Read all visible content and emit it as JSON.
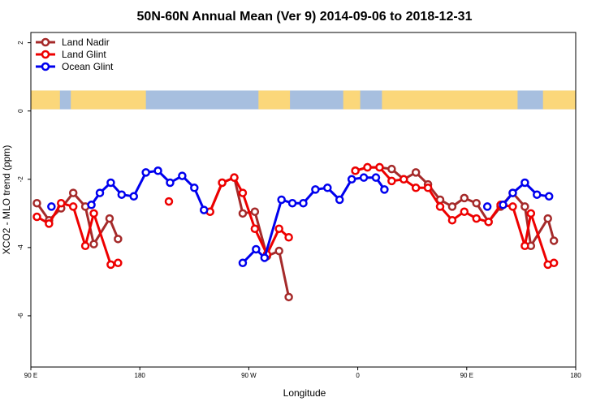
{
  "chart_data": {
    "type": "line",
    "title": "50N-60N Annual Mean (Ver 9)   2014-09-06 to 2018-12-31",
    "xlabel": "Longitude",
    "ylabel": "XCO2 - MLO trend (ppm)",
    "xlim": [
      0,
      450
    ],
    "ylim": [
      -7.5,
      2.3
    ],
    "x_ticks": [
      {
        "value": 0,
        "label": "90 E"
      },
      {
        "value": 90,
        "label": "180"
      },
      {
        "value": 180,
        "label": "90 W"
      },
      {
        "value": 270,
        "label": "0"
      },
      {
        "value": 360,
        "label": "90 E"
      },
      {
        "value": 450,
        "label": "180"
      }
    ],
    "y_ticks": [
      {
        "value": 2,
        "label": "2"
      },
      {
        "value": 0,
        "label": "0"
      },
      {
        "value": -2,
        "label": "-2"
      },
      {
        "value": -4,
        "label": "-4"
      },
      {
        "value": -6,
        "label": "-6"
      }
    ],
    "grid": false,
    "legend_position": "top-left",
    "map_band": {
      "y_top": 0.6,
      "y_bottom": 0.05,
      "ocean_color": "#a7bfdf",
      "land_color": "#fbd77a"
    },
    "series": [
      {
        "name": "Land Nadir",
        "color": "#a52a2a",
        "x": [
          5,
          15,
          25,
          35,
          45,
          52,
          65,
          70,
          75,
          160,
          165,
          175,
          180,
          185,
          195,
          205,
          210,
          260,
          265,
          270,
          280,
          290,
          300,
          310,
          320,
          330,
          340,
          350,
          360,
          365,
          375,
          385,
          395,
          405,
          410,
          420
        ],
        "y": [
          -2.7,
          -3.2,
          -2.85,
          -2.4,
          -2.8,
          -3.9,
          -3.15,
          -3.75,
          null,
          -2.95,
          -2.1,
          -3.0,
          -2.95,
          -4.25,
          -4.1,
          -5.45,
          null,
          -1.75,
          -1.7,
          -1.65,
          -1.7,
          -2.0,
          -1.8,
          -2.15,
          -2.6,
          -2.8,
          -2.55,
          -2.7,
          -3.25,
          -2.8,
          -2.4,
          -2.8,
          -3.95,
          -3.15,
          -3.8,
          null
        ],
        "isolated": [
          {
            "x": 5,
            "y": -2.7
          }
        ]
      },
      {
        "name": "Land Glint",
        "color": "#ee0000",
        "x": [
          5,
          15,
          25,
          35,
          45,
          52,
          65,
          70
        ],
        "y": [
          -3.1,
          -3.3,
          -2.7,
          -2.8,
          -3.95,
          -3.0,
          -4.5,
          -4.45
        ],
        "isolated": [
          {
            "x": 114,
            "y": -2.65
          }
        ]
      },
      {
        "name": "Ocean Glint",
        "color": "#0000ee",
        "x": [],
        "y": [],
        "isolated": []
      }
    ],
    "segments": [
      {
        "series": 0,
        "points": [
          [
            5,
            -2.7
          ],
          [
            15,
            -3.2
          ],
          [
            25,
            -2.85
          ],
          [
            35,
            -2.4
          ],
          [
            45,
            -2.8
          ],
          [
            52,
            -3.9
          ],
          [
            65,
            -3.15
          ],
          [
            72,
            -3.75
          ]
        ]
      },
      {
        "series": 0,
        "points": [
          [
            148,
            -2.95
          ],
          [
            158,
            -2.1
          ],
          [
            168,
            -1.95
          ],
          [
            175,
            -3.0
          ],
          [
            185,
            -2.95
          ],
          [
            195,
            -4.25
          ],
          [
            205,
            -4.1
          ],
          [
            213,
            -5.45
          ]
        ]
      },
      {
        "series": 0,
        "points": [
          [
            268,
            -1.75
          ],
          [
            278,
            -1.65
          ],
          [
            288,
            -1.65
          ],
          [
            298,
            -1.7
          ],
          [
            308,
            -2.0
          ],
          [
            318,
            -1.8
          ],
          [
            328,
            -2.15
          ],
          [
            338,
            -2.6
          ],
          [
            348,
            -2.8
          ],
          [
            358,
            -2.55
          ],
          [
            368,
            -2.7
          ],
          [
            378,
            -3.25
          ],
          [
            388,
            -2.8
          ],
          [
            398,
            -2.4
          ],
          [
            408,
            -2.8
          ],
          [
            413,
            -3.95
          ],
          [
            427,
            -3.15
          ],
          [
            432,
            -3.8
          ]
        ]
      },
      {
        "series": 1,
        "points": [
          [
            5,
            -3.1
          ],
          [
            15,
            -3.3
          ],
          [
            25,
            -2.7
          ],
          [
            35,
            -2.8
          ],
          [
            45,
            -3.95
          ],
          [
            52,
            -3.0
          ],
          [
            66,
            -4.5
          ],
          [
            72,
            -4.45
          ]
        ]
      },
      {
        "series": 1,
        "points": [
          [
            148,
            -2.95
          ],
          [
            158,
            -2.1
          ],
          [
            168,
            -1.95
          ],
          [
            175,
            -2.4
          ],
          [
            185,
            -3.45
          ],
          [
            195,
            -4.2
          ],
          [
            205,
            -3.45
          ],
          [
            213,
            -3.7
          ]
        ]
      },
      {
        "series": 1,
        "points": [
          [
            268,
            -1.75
          ],
          [
            278,
            -1.65
          ],
          [
            288,
            -1.65
          ],
          [
            298,
            -2.05
          ],
          [
            308,
            -2.0
          ],
          [
            318,
            -2.25
          ],
          [
            328,
            -2.25
          ],
          [
            338,
            -2.8
          ],
          [
            348,
            -3.2
          ],
          [
            358,
            -2.95
          ],
          [
            368,
            -3.15
          ],
          [
            378,
            -3.25
          ],
          [
            388,
            -2.75
          ],
          [
            398,
            -2.8
          ],
          [
            408,
            -3.95
          ],
          [
            413,
            -3.0
          ],
          [
            427,
            -4.5
          ],
          [
            432,
            -4.45
          ]
        ]
      },
      {
        "series": 2,
        "points": [
          [
            50,
            -2.75
          ],
          [
            57,
            -2.4
          ],
          [
            66,
            -2.1
          ],
          [
            75,
            -2.45
          ],
          [
            85,
            -2.5
          ],
          [
            95,
            -1.8
          ],
          [
            105,
            -1.75
          ],
          [
            115,
            -2.1
          ],
          [
            125,
            -1.9
          ],
          [
            135,
            -2.25
          ],
          [
            143,
            -2.9
          ]
        ]
      },
      {
        "series": 2,
        "points": [
          [
            175,
            -4.45
          ],
          [
            186,
            -4.05
          ],
          [
            193,
            -4.3
          ],
          [
            207,
            -2.6
          ],
          [
            216,
            -2.7
          ],
          [
            225,
            -2.7
          ],
          [
            235,
            -2.3
          ],
          [
            245,
            -2.25
          ],
          [
            255,
            -2.6
          ],
          [
            265,
            -2.0
          ],
          [
            275,
            -1.95
          ],
          [
            285,
            -1.95
          ],
          [
            292,
            -2.3
          ]
        ]
      },
      {
        "series": 2,
        "points": [
          [
            390,
            -2.75
          ],
          [
            398,
            -2.4
          ],
          [
            408,
            -2.1
          ],
          [
            418,
            -2.45
          ],
          [
            428,
            -2.5
          ]
        ]
      }
    ],
    "singles": [
      {
        "series": 2,
        "x": 17,
        "y": -2.8
      },
      {
        "series": 1,
        "x": 114,
        "y": -2.65
      },
      {
        "series": 2,
        "x": 377,
        "y": -2.8
      }
    ]
  }
}
